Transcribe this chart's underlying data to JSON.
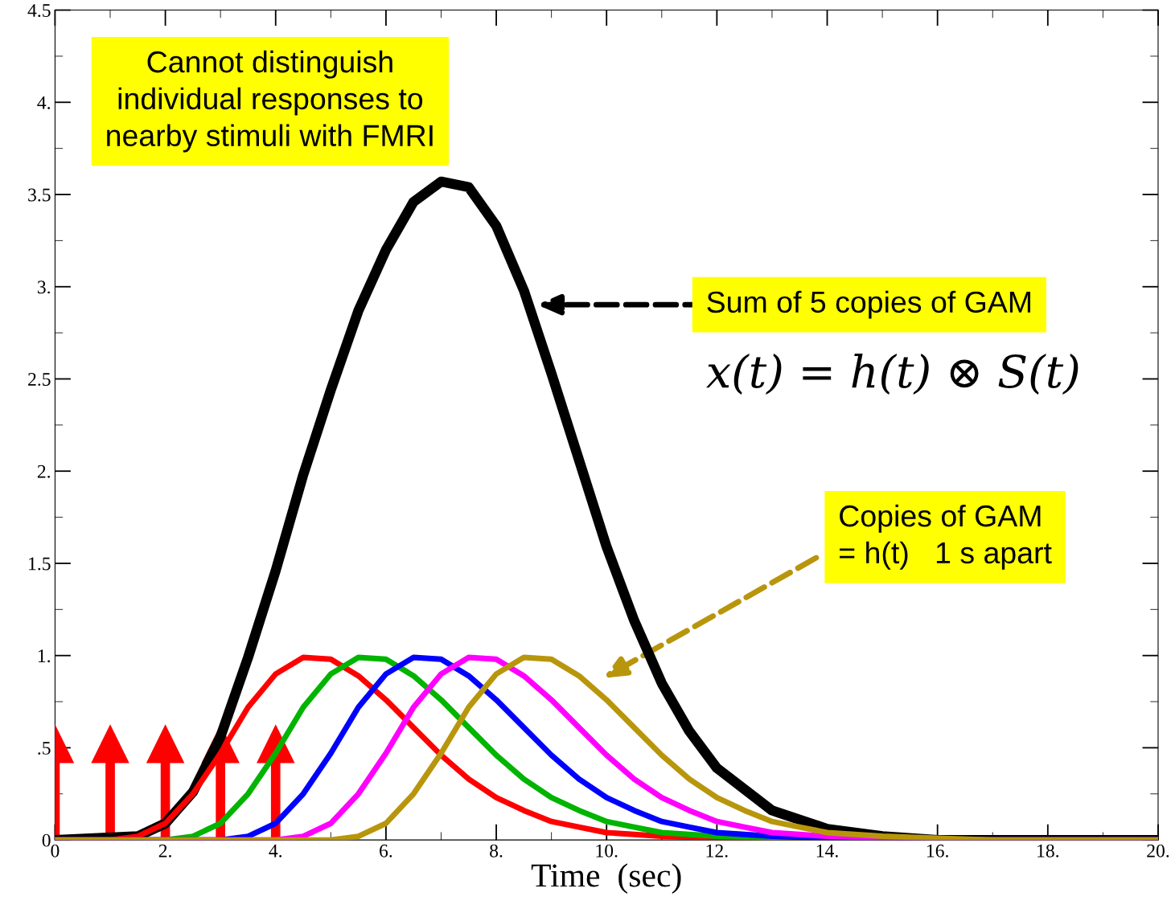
{
  "chart_data": {
    "type": "line",
    "xlabel": "Time  (sec)",
    "xlim": [
      0,
      20
    ],
    "ylim": [
      0,
      4.5
    ],
    "xticks": [
      0,
      {
        "value": 2,
        "label": "2."
      },
      {
        "value": 4,
        "label": "4."
      },
      {
        "value": 6,
        "label": "6."
      },
      {
        "value": 8,
        "label": "8."
      },
      {
        "value": 10,
        "label": "10."
      },
      {
        "value": 12,
        "label": "12."
      },
      {
        "value": 14,
        "label": "14."
      },
      {
        "value": 16,
        "label": "16."
      },
      {
        "value": 18,
        "label": "18."
      },
      {
        "value": 20,
        "label": "20."
      }
    ],
    "yticks": [
      0,
      {
        "value": 0.5,
        "label": ".5"
      },
      {
        "value": 1,
        "label": "1."
      },
      1.5,
      {
        "value": 2,
        "label": "2."
      },
      2.5,
      {
        "value": 3,
        "label": "3."
      },
      3.5,
      {
        "value": 4,
        "label": "4."
      },
      4.5
    ],
    "grid": false,
    "legend": false,
    "marker": "none",
    "line_style": "solid",
    "series": [
      {
        "color": "#000000",
        "x": [
          0,
          1.5,
          2,
          2.5,
          3,
          3.5,
          4,
          4.5,
          5,
          5.5,
          6,
          6.5,
          7,
          7.5,
          8,
          8.5,
          9,
          9.5,
          10,
          10.5,
          11,
          11.5,
          12,
          13,
          14,
          15,
          16,
          20
        ],
        "values": [
          0,
          0.02,
          0.09,
          0.26,
          0.56,
          0.99,
          1.46,
          1.98,
          2.44,
          2.87,
          3.2,
          3.46,
          3.57,
          3.54,
          3.33,
          2.98,
          2.53,
          2.06,
          1.59,
          1.19,
          0.85,
          0.59,
          0.39,
          0.16,
          0.06,
          0.02,
          0,
          0
        ]
      },
      {
        "color": "#ff0000",
        "x": [
          0,
          1,
          1.5,
          2,
          2.5,
          3,
          3.5,
          4,
          4.5,
          5,
          5.5,
          6,
          6.5,
          7,
          7.5,
          8,
          8.5,
          9,
          9.5,
          10,
          10.5,
          11,
          12,
          13,
          20
        ],
        "values": [
          0,
          0,
          0.02,
          0.09,
          0.25,
          0.47,
          0.72,
          0.9,
          0.99,
          0.98,
          0.89,
          0.76,
          0.61,
          0.46,
          0.33,
          0.23,
          0.16,
          0.1,
          0.07,
          0.04,
          0.03,
          0.02,
          0.01,
          0,
          0
        ]
      },
      {
        "color": "#00b400",
        "x": [
          0,
          2,
          2.5,
          3,
          3.5,
          4,
          4.5,
          5,
          5.5,
          6,
          6.5,
          7,
          7.5,
          8,
          8.5,
          9,
          9.5,
          10,
          10.5,
          11,
          11.5,
          12,
          13,
          14,
          20
        ],
        "values": [
          0,
          0,
          0.02,
          0.09,
          0.25,
          0.47,
          0.72,
          0.9,
          0.99,
          0.98,
          0.89,
          0.76,
          0.61,
          0.46,
          0.33,
          0.23,
          0.16,
          0.1,
          0.07,
          0.04,
          0.03,
          0.02,
          0.01,
          0,
          0
        ]
      },
      {
        "color": "#0000ff",
        "x": [
          0,
          3,
          3.5,
          4,
          4.5,
          5,
          5.5,
          6,
          6.5,
          7,
          7.5,
          8,
          8.5,
          9,
          9.5,
          10,
          10.5,
          11,
          11.5,
          12,
          12.5,
          13,
          14,
          15,
          20
        ],
        "values": [
          0,
          0,
          0.02,
          0.09,
          0.25,
          0.47,
          0.72,
          0.9,
          0.99,
          0.98,
          0.89,
          0.76,
          0.61,
          0.46,
          0.33,
          0.23,
          0.16,
          0.1,
          0.07,
          0.04,
          0.03,
          0.02,
          0.01,
          0,
          0
        ]
      },
      {
        "color": "#ff00ff",
        "x": [
          0,
          4,
          4.5,
          5,
          5.5,
          6,
          6.5,
          7,
          7.5,
          8,
          8.5,
          9,
          9.5,
          10,
          10.5,
          11,
          11.5,
          12,
          12.5,
          13,
          13.5,
          14,
          15,
          16,
          20
        ],
        "values": [
          0,
          0,
          0.02,
          0.09,
          0.25,
          0.47,
          0.72,
          0.9,
          0.99,
          0.98,
          0.89,
          0.76,
          0.61,
          0.46,
          0.33,
          0.23,
          0.16,
          0.1,
          0.07,
          0.04,
          0.03,
          0.02,
          0.01,
          0,
          0
        ]
      },
      {
        "color": "#b8960c",
        "x": [
          0,
          5,
          5.5,
          6,
          6.5,
          7,
          7.5,
          8,
          8.5,
          9,
          9.5,
          10,
          10.5,
          11,
          11.5,
          12,
          12.5,
          13,
          13.5,
          14,
          14.5,
          15,
          16,
          17,
          20
        ],
        "values": [
          0,
          0,
          0.02,
          0.09,
          0.25,
          0.47,
          0.72,
          0.9,
          0.99,
          0.98,
          0.89,
          0.76,
          0.61,
          0.46,
          0.33,
          0.23,
          0.16,
          0.1,
          0.07,
          0.04,
          0.03,
          0.02,
          0.01,
          0,
          0
        ]
      }
    ],
    "annotations": [
      "Cannot distinguish\nindividual responses to\nnearby stimuli with FMRI",
      "Sum of 5 copies of GAM",
      "x(t) = h(t) ⊗ S(t)",
      "Copies of GAM\n= h(t)   1 s apart"
    ]
  }
}
